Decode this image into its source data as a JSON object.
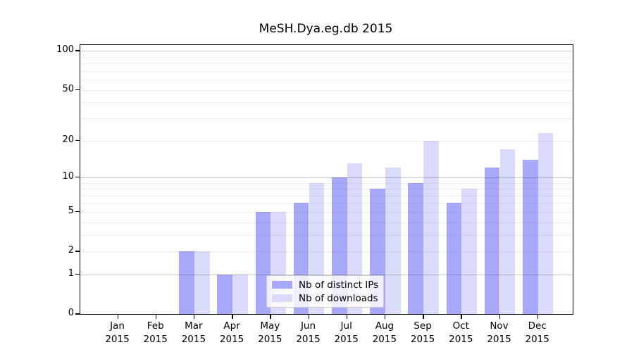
{
  "title": "MeSH.Dya.eg.db 2015",
  "chart_data": {
    "type": "bar",
    "title": "MeSH.Dya.eg.db 2015",
    "categories": [
      "Jan 2015",
      "Feb 2015",
      "Mar 2015",
      "Apr 2015",
      "May 2015",
      "Jun 2015",
      "Jul 2015",
      "Aug 2015",
      "Sep 2015",
      "Oct 2015",
      "Nov 2015",
      "Dec 2015"
    ],
    "month_labels": [
      "Jan",
      "Feb",
      "Mar",
      "Apr",
      "May",
      "Jun",
      "Jul",
      "Aug",
      "Sep",
      "Oct",
      "Nov",
      "Dec"
    ],
    "year_label": "2015",
    "series": [
      {
        "name": "Nb of distinct IPs",
        "color": "#a8a8fa",
        "values": [
          0,
          0,
          2,
          1,
          5,
          6,
          10,
          8,
          9,
          6,
          12,
          14
        ]
      },
      {
        "name": "Nb of downloads",
        "color": "#dadafb",
        "values": [
          0,
          0,
          2,
          1,
          5,
          9,
          13,
          12,
          20,
          8,
          17,
          23
        ]
      }
    ],
    "xlabel": "",
    "ylabel": "",
    "yscale": "log1p",
    "ylim": [
      0,
      111
    ],
    "yticks": [
      0,
      1,
      2,
      5,
      10,
      20,
      50,
      100
    ],
    "major_gridlines": [
      1,
      10,
      100
    ],
    "minor_gridlines": [
      2,
      3,
      4,
      5,
      6,
      7,
      8,
      9,
      20,
      30,
      40,
      50,
      60,
      70,
      80,
      90
    ],
    "grid": true,
    "legend_position": "lower-center"
  }
}
